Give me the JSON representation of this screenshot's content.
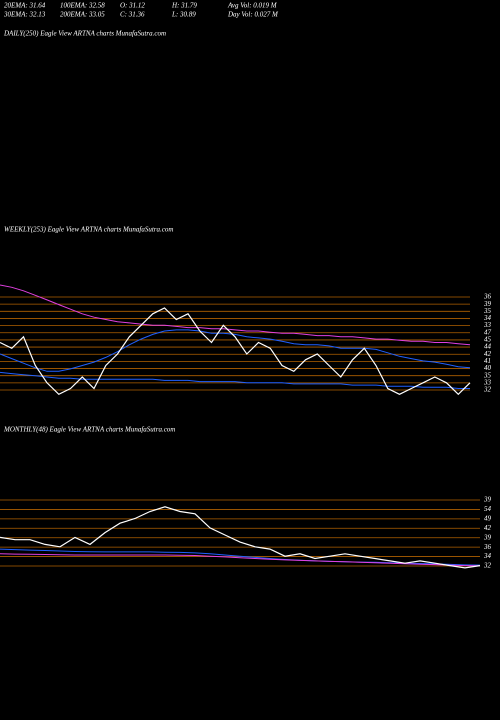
{
  "header": {
    "row1": [
      "20EMA: 31.64",
      "100EMA: 32.58",
      "O: 31.12",
      "H: 31.79",
      "Avg Vol: 0.019 M"
    ],
    "row2": [
      "30EMA: 32.13",
      "200EMA: 33.05",
      "C: 31.36",
      "L: 30.89",
      "Day Vol: 0.027 M"
    ]
  },
  "daily": {
    "title": "DAILY(250) Eagle  View  ARTNA charts MunafaSutra.com"
  },
  "chart_data": [
    {
      "type": "line",
      "title": "WEEKLY(253) Eagle  View  ARTNA charts MunafaSutra.com",
      "categories": [
        null,
        null,
        null,
        null,
        null,
        null,
        null,
        null,
        null,
        null,
        null,
        null,
        null,
        null,
        null,
        null,
        null,
        null,
        null,
        null,
        null,
        null,
        null,
        null,
        null,
        null,
        null,
        null,
        null,
        null,
        null,
        null,
        null,
        null,
        null,
        null,
        null,
        null,
        null,
        null,
        null
      ],
      "ylim": [
        30,
        40
      ],
      "level_labels": [
        36,
        39,
        35,
        34,
        33,
        47,
        45,
        44,
        42,
        41,
        40,
        35,
        33,
        32
      ],
      "series": [
        {
          "color": "#e040e0",
          "values": [
            40,
            39.8,
            39.5,
            39.1,
            38.7,
            38.3,
            37.9,
            37.5,
            37.2,
            37,
            36.8,
            36.7,
            36.6,
            36.5,
            36.5,
            36.4,
            36.3,
            36.3,
            36.2,
            36.2,
            36.1,
            36,
            36,
            35.9,
            35.8,
            35.8,
            35.7,
            35.6,
            35.6,
            35.5,
            35.5,
            35.4,
            35.3,
            35.3,
            35.2,
            35.1,
            35.1,
            35,
            35,
            34.9,
            34.8
          ]
        },
        {
          "color": "#2060ff",
          "values": [
            34,
            33.6,
            33.2,
            32.8,
            32.5,
            32.5,
            32.7,
            33,
            33.3,
            33.7,
            34.2,
            34.8,
            35.3,
            35.7,
            36,
            36.1,
            36.1,
            36,
            35.8,
            35.8,
            35.7,
            35.5,
            35.4,
            35.3,
            35.1,
            34.9,
            34.8,
            34.8,
            34.7,
            34.5,
            34.5,
            34.5,
            34.4,
            34.1,
            33.8,
            33.6,
            33.4,
            33.3,
            33.1,
            32.9,
            32.8
          ]
        },
        {
          "color": "#2060ff",
          "values": [
            32.4,
            32.3,
            32.2,
            32.1,
            32,
            31.9,
            31.9,
            31.8,
            31.8,
            31.8,
            31.8,
            31.8,
            31.8,
            31.8,
            31.7,
            31.7,
            31.7,
            31.6,
            31.6,
            31.6,
            31.6,
            31.5,
            31.5,
            31.5,
            31.5,
            31.4,
            31.4,
            31.4,
            31.4,
            31.4,
            31.3,
            31.3,
            31.3,
            31.2,
            31.2,
            31.2,
            31.1,
            31.1,
            31.1,
            31,
            31
          ]
        },
        {
          "color": "#ffffff",
          "values": [
            35,
            34.5,
            35.5,
            33,
            31.5,
            30.5,
            31,
            32,
            31,
            33,
            34,
            35.5,
            36.5,
            37.5,
            38,
            37,
            37.5,
            36,
            35,
            36.5,
            35.5,
            34,
            35,
            34.5,
            33,
            32.5,
            33.5,
            34,
            33,
            32,
            33.5,
            34.5,
            33,
            31,
            30.5,
            31,
            31.5,
            32,
            31.5,
            30.5,
            31.5
          ]
        }
      ]
    },
    {
      "type": "line",
      "title": "MONTHLY(48) Eagle  View  ARTNA charts MunafaSutra.com",
      "categories": [
        null,
        null,
        null,
        null,
        null,
        null,
        null,
        null,
        null,
        null,
        null,
        null,
        null,
        null,
        null,
        null,
        null,
        null,
        null,
        null,
        null,
        null,
        null,
        null,
        null,
        null,
        null,
        null,
        null,
        null,
        null,
        null,
        null
      ],
      "ylim": [
        28,
        62
      ],
      "level_labels": [
        39,
        54,
        49,
        42,
        39,
        36,
        34,
        32
      ],
      "series": [
        {
          "color": "#2060ff",
          "values": [
            39,
            38.8,
            38.6,
            38.4,
            38.2,
            38,
            37.9,
            37.8,
            37.8,
            37.8,
            37.8,
            37.7,
            37.6,
            37.4,
            37,
            36.5,
            36,
            35.5,
            35,
            34.6,
            34.3,
            34,
            33.8,
            33.6,
            33.5,
            33.4,
            33.2,
            33,
            32.9,
            32.7,
            32.5,
            32.3,
            32.2
          ]
        },
        {
          "color": "#e040e0",
          "values": [
            37,
            36.9,
            36.8,
            36.7,
            36.6,
            36.5,
            36.5,
            36.5,
            36.5,
            36.5,
            36.5,
            36.5,
            36.4,
            36.3,
            36,
            35.7,
            35.3,
            35,
            34.7,
            34.4,
            34.2,
            34,
            33.8,
            33.6,
            33.4,
            33.2,
            33,
            32.8,
            32.6,
            32.4,
            32.2,
            32,
            31.9
          ]
        },
        {
          "color": "#ffffff",
          "values": [
            44,
            43,
            43,
            41,
            40,
            44,
            41,
            46,
            50,
            52,
            55,
            57,
            55,
            54,
            48,
            45,
            42,
            40,
            39,
            36,
            37,
            35,
            36,
            37,
            36,
            35,
            34,
            33,
            34,
            33,
            32,
            31,
            32
          ]
        }
      ]
    }
  ]
}
